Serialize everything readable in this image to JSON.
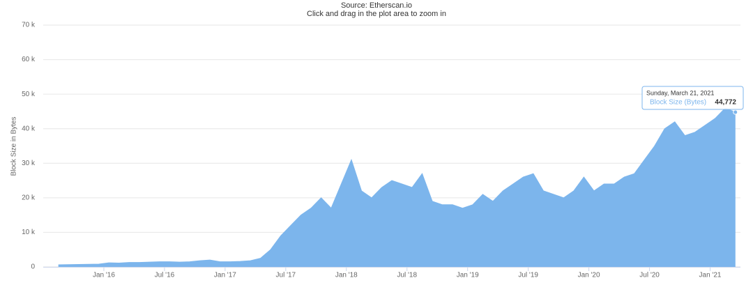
{
  "chart_data": {
    "type": "area",
    "title": "Source: Etherscan.io",
    "subtitle": "Click and drag in the plot area to zoom in",
    "y_label": "Block Size in Bytes",
    "grid": true,
    "xlim": [
      "2015-07",
      "2021-04"
    ],
    "xticks": [
      {
        "value": "2016-01",
        "label": "Jan '16"
      },
      {
        "value": "2016-07",
        "label": "Jul '16"
      },
      {
        "value": "2017-01",
        "label": "Jan '17"
      },
      {
        "value": "2017-07",
        "label": "Jul '17"
      },
      {
        "value": "2018-01",
        "label": "Jan '18"
      },
      {
        "value": "2018-07",
        "label": "Jul '18"
      },
      {
        "value": "2019-01",
        "label": "Jan '19"
      },
      {
        "value": "2019-07",
        "label": "Jul '19"
      },
      {
        "value": "2020-01",
        "label": "Jan '20"
      },
      {
        "value": "2020-07",
        "label": "Jul '20"
      },
      {
        "value": "2021-01",
        "label": "Jan '21"
      }
    ],
    "ylim": [
      0,
      70000
    ],
    "yticks": [
      0,
      {
        "value": 10000,
        "label": "10 k"
      },
      {
        "value": 20000,
        "label": "20 k"
      },
      {
        "value": 30000,
        "label": "30 k"
      },
      {
        "value": 40000,
        "label": "40 k"
      },
      {
        "value": 50000,
        "label": "50 k"
      },
      {
        "value": 60000,
        "label": "60 k"
      },
      {
        "value": 70000,
        "label": "70 k"
      }
    ],
    "x": [
      "2015-08",
      "2015-09",
      "2015-10",
      "2015-11",
      "2015-12",
      "2016-01",
      "2016-02",
      "2016-03",
      "2016-04",
      "2016-05",
      "2016-06",
      "2016-07",
      "2016-08",
      "2016-09",
      "2016-10",
      "2016-11",
      "2016-12",
      "2017-01",
      "2017-02",
      "2017-03",
      "2017-04",
      "2017-05",
      "2017-06",
      "2017-07",
      "2017-08",
      "2017-09",
      "2017-10",
      "2017-11",
      "2017-12",
      "2018-01",
      "2018-02",
      "2018-03",
      "2018-04",
      "2018-05",
      "2018-06",
      "2018-07",
      "2018-08",
      "2018-09",
      "2018-10",
      "2018-11",
      "2018-12",
      "2019-01",
      "2019-02",
      "2019-03",
      "2019-04",
      "2019-05",
      "2019-06",
      "2019-07",
      "2019-08",
      "2019-09",
      "2019-10",
      "2019-11",
      "2019-12",
      "2020-01",
      "2020-02",
      "2020-03",
      "2020-04",
      "2020-05",
      "2020-06",
      "2020-07",
      "2020-08",
      "2020-09",
      "2020-10",
      "2020-11",
      "2020-12",
      "2021-01",
      "2021-02",
      "2021-03"
    ],
    "series": [
      {
        "name": "Block Size (Bytes)",
        "color": "#7cb5ec",
        "values": [
          600,
          650,
          700,
          750,
          800,
          1200,
          1100,
          1300,
          1300,
          1400,
          1500,
          1500,
          1400,
          1500,
          1800,
          2000,
          1500,
          1500,
          1600,
          1800,
          2500,
          5000,
          9000,
          12000,
          15000,
          17000,
          20000,
          17000,
          24000,
          31000,
          22000,
          20000,
          23000,
          25000,
          24000,
          23000,
          27000,
          19000,
          18000,
          18000,
          17000,
          18000,
          21000,
          19000,
          22000,
          24000,
          26000,
          27000,
          22000,
          21000,
          20000,
          22000,
          26000,
          22000,
          24000,
          24000,
          26000,
          27000,
          31000,
          35000,
          40000,
          42000,
          38000,
          39000,
          41000,
          43000,
          46000,
          44772
        ]
      }
    ],
    "tooltip": {
      "date": "Sunday, March 21, 2021",
      "series": "Block Size (Bytes)",
      "value": 44772,
      "value_label": "44,772"
    }
  }
}
